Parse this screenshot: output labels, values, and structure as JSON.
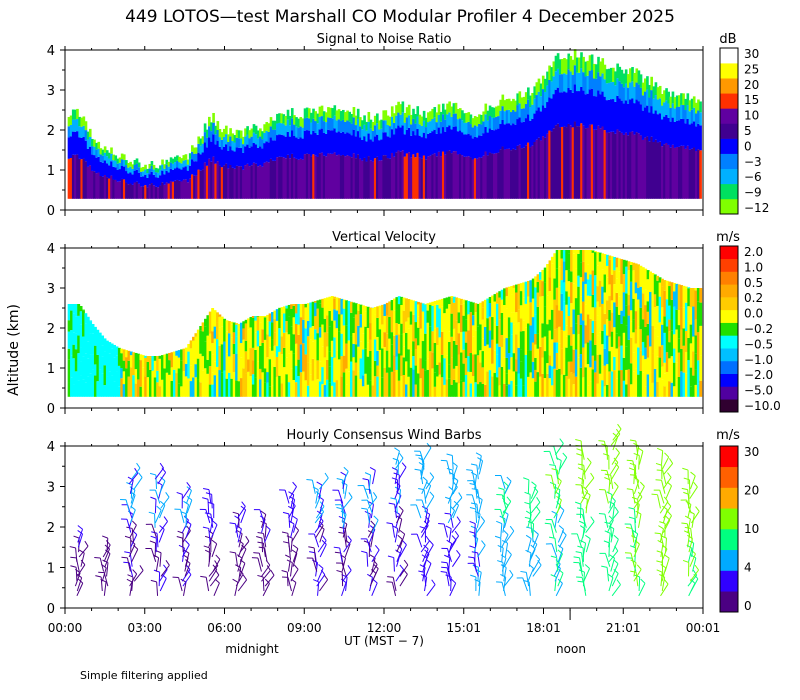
{
  "title": "449 LOTOS—test Marshall CO Modular Profiler  4 December 2025",
  "y_axis_label": "Altitude (km)",
  "x_axis": {
    "tick_labels": [
      "00:00",
      "03:00",
      "06:00",
      "09:00",
      "12:00",
      "15:01",
      "18:01",
      "21:01",
      "00:01"
    ],
    "label": "UT  (MST − 7)",
    "midnight_label": "midnight",
    "noon_label": "noon"
  },
  "footnote": "Simple filtering applied",
  "colors": {
    "snr": [
      "#80ff00",
      "#00e060",
      "#00b0ff",
      "#0080ff",
      "#0000ff",
      "#400090",
      "#6000a0",
      "#ff3000",
      "#ff9900",
      "#ffff00",
      "#ffffff"
    ],
    "velocity": [
      "#300030",
      "#5000a0",
      "#0000ff",
      "#0070ff",
      "#00c0ff",
      "#00ffff",
      "#20e000",
      "#ffff00",
      "#ffcc00",
      "#ffaa00",
      "#ff8000",
      "#ff4000",
      "#ff0000"
    ],
    "wind": [
      "#4b0082",
      "#3000ff",
      "#00aaff",
      "#00ff80",
      "#80ff00",
      "#ffaa00",
      "#ff6000",
      "#ff0000"
    ]
  },
  "chart_data": [
    {
      "type": "heatmap",
      "title": "Signal to Noise Ratio",
      "units": "dB",
      "x_range_hours": [
        0,
        24
      ],
      "ylim": [
        0,
        4
      ],
      "y_ticks": [
        "0",
        "1",
        "2",
        "3",
        "4"
      ],
      "colorbar_labels": [
        "30",
        "25",
        "20",
        "15",
        "10",
        "5",
        "0",
        "−3",
        "−6",
        "−9",
        "−12"
      ],
      "echo_top_hours": [
        0.5,
        1.0,
        1.5,
        2.0,
        2.5,
        3.0,
        3.5,
        4.0,
        4.5,
        5.0,
        5.5,
        6.0,
        6.5,
        7.0,
        7.5,
        8.0,
        8.5,
        9.0,
        9.5,
        10.0,
        10.5,
        11.0,
        11.5,
        12.0,
        12.5,
        13.0,
        13.5,
        14.0,
        14.5,
        15.0,
        15.5,
        16.0,
        16.5,
        17.0,
        17.5,
        18.0,
        18.5,
        19.0,
        19.5,
        20.0,
        20.5,
        21.0,
        21.5,
        22.0,
        22.5,
        23.0,
        23.5
      ],
      "echo_top_km": [
        2.4,
        1.9,
        1.5,
        1.3,
        1.2,
        1.1,
        1.1,
        1.2,
        1.3,
        1.8,
        2.3,
        2.0,
        1.9,
        2.1,
        2.1,
        2.3,
        2.4,
        2.4,
        2.5,
        2.6,
        2.5,
        2.4,
        2.3,
        2.4,
        2.6,
        2.5,
        2.4,
        2.5,
        2.6,
        2.5,
        2.4,
        2.6,
        2.8,
        2.9,
        3.0,
        3.3,
        3.8,
        3.9,
        3.8,
        3.7,
        3.6,
        3.5,
        3.4,
        3.2,
        3.0,
        2.9,
        2.8
      ]
    },
    {
      "type": "heatmap",
      "title": "Vertical Velocity",
      "units": "m/s",
      "x_range_hours": [
        0,
        24
      ],
      "ylim": [
        0,
        4
      ],
      "y_ticks": [
        "0",
        "1",
        "2",
        "3",
        "4"
      ],
      "colorbar_labels": [
        "2.0",
        "1.0",
        "0.5",
        "0.2",
        "0.0",
        "−0.2",
        "−0.5",
        "−1.0",
        "−2.0",
        "−5.0",
        "−10.0"
      ]
    },
    {
      "type": "wind_barbs",
      "title": "Hourly Consensus Wind Barbs",
      "units": "m/s",
      "x_range_hours": [
        0,
        24
      ],
      "ylim": [
        0,
        4
      ],
      "y_ticks": [
        "0",
        "1",
        "2",
        "3",
        "4"
      ],
      "colorbar_labels": [
        "30",
        "20",
        "10",
        "4",
        "0"
      ],
      "hours": [
        0.5,
        1.5,
        2.5,
        3.5,
        4.5,
        5.5,
        6.5,
        7.5,
        8.5,
        9.5,
        10.5,
        11.5,
        12.5,
        13.5,
        14.5,
        15.5,
        16.5,
        17.5,
        18.5,
        19.5,
        20.5,
        21.5,
        22.5,
        23.5
      ],
      "top_km": [
        1.7,
        1.5,
        3.2,
        3.3,
        2.8,
        2.6,
        2.3,
        2.2,
        2.8,
        3.0,
        3.1,
        3.1,
        3.6,
        3.7,
        3.5,
        3.5,
        3.0,
        2.9,
        3.9,
        3.9,
        4.2,
        3.9,
        3.6,
        3.1
      ],
      "speed_ms": [
        3,
        2,
        5,
        5,
        5,
        4,
        3,
        3,
        4,
        5,
        5,
        5,
        5,
        6,
        6,
        7,
        8,
        9,
        10,
        11,
        11,
        12,
        13,
        12
      ]
    }
  ]
}
